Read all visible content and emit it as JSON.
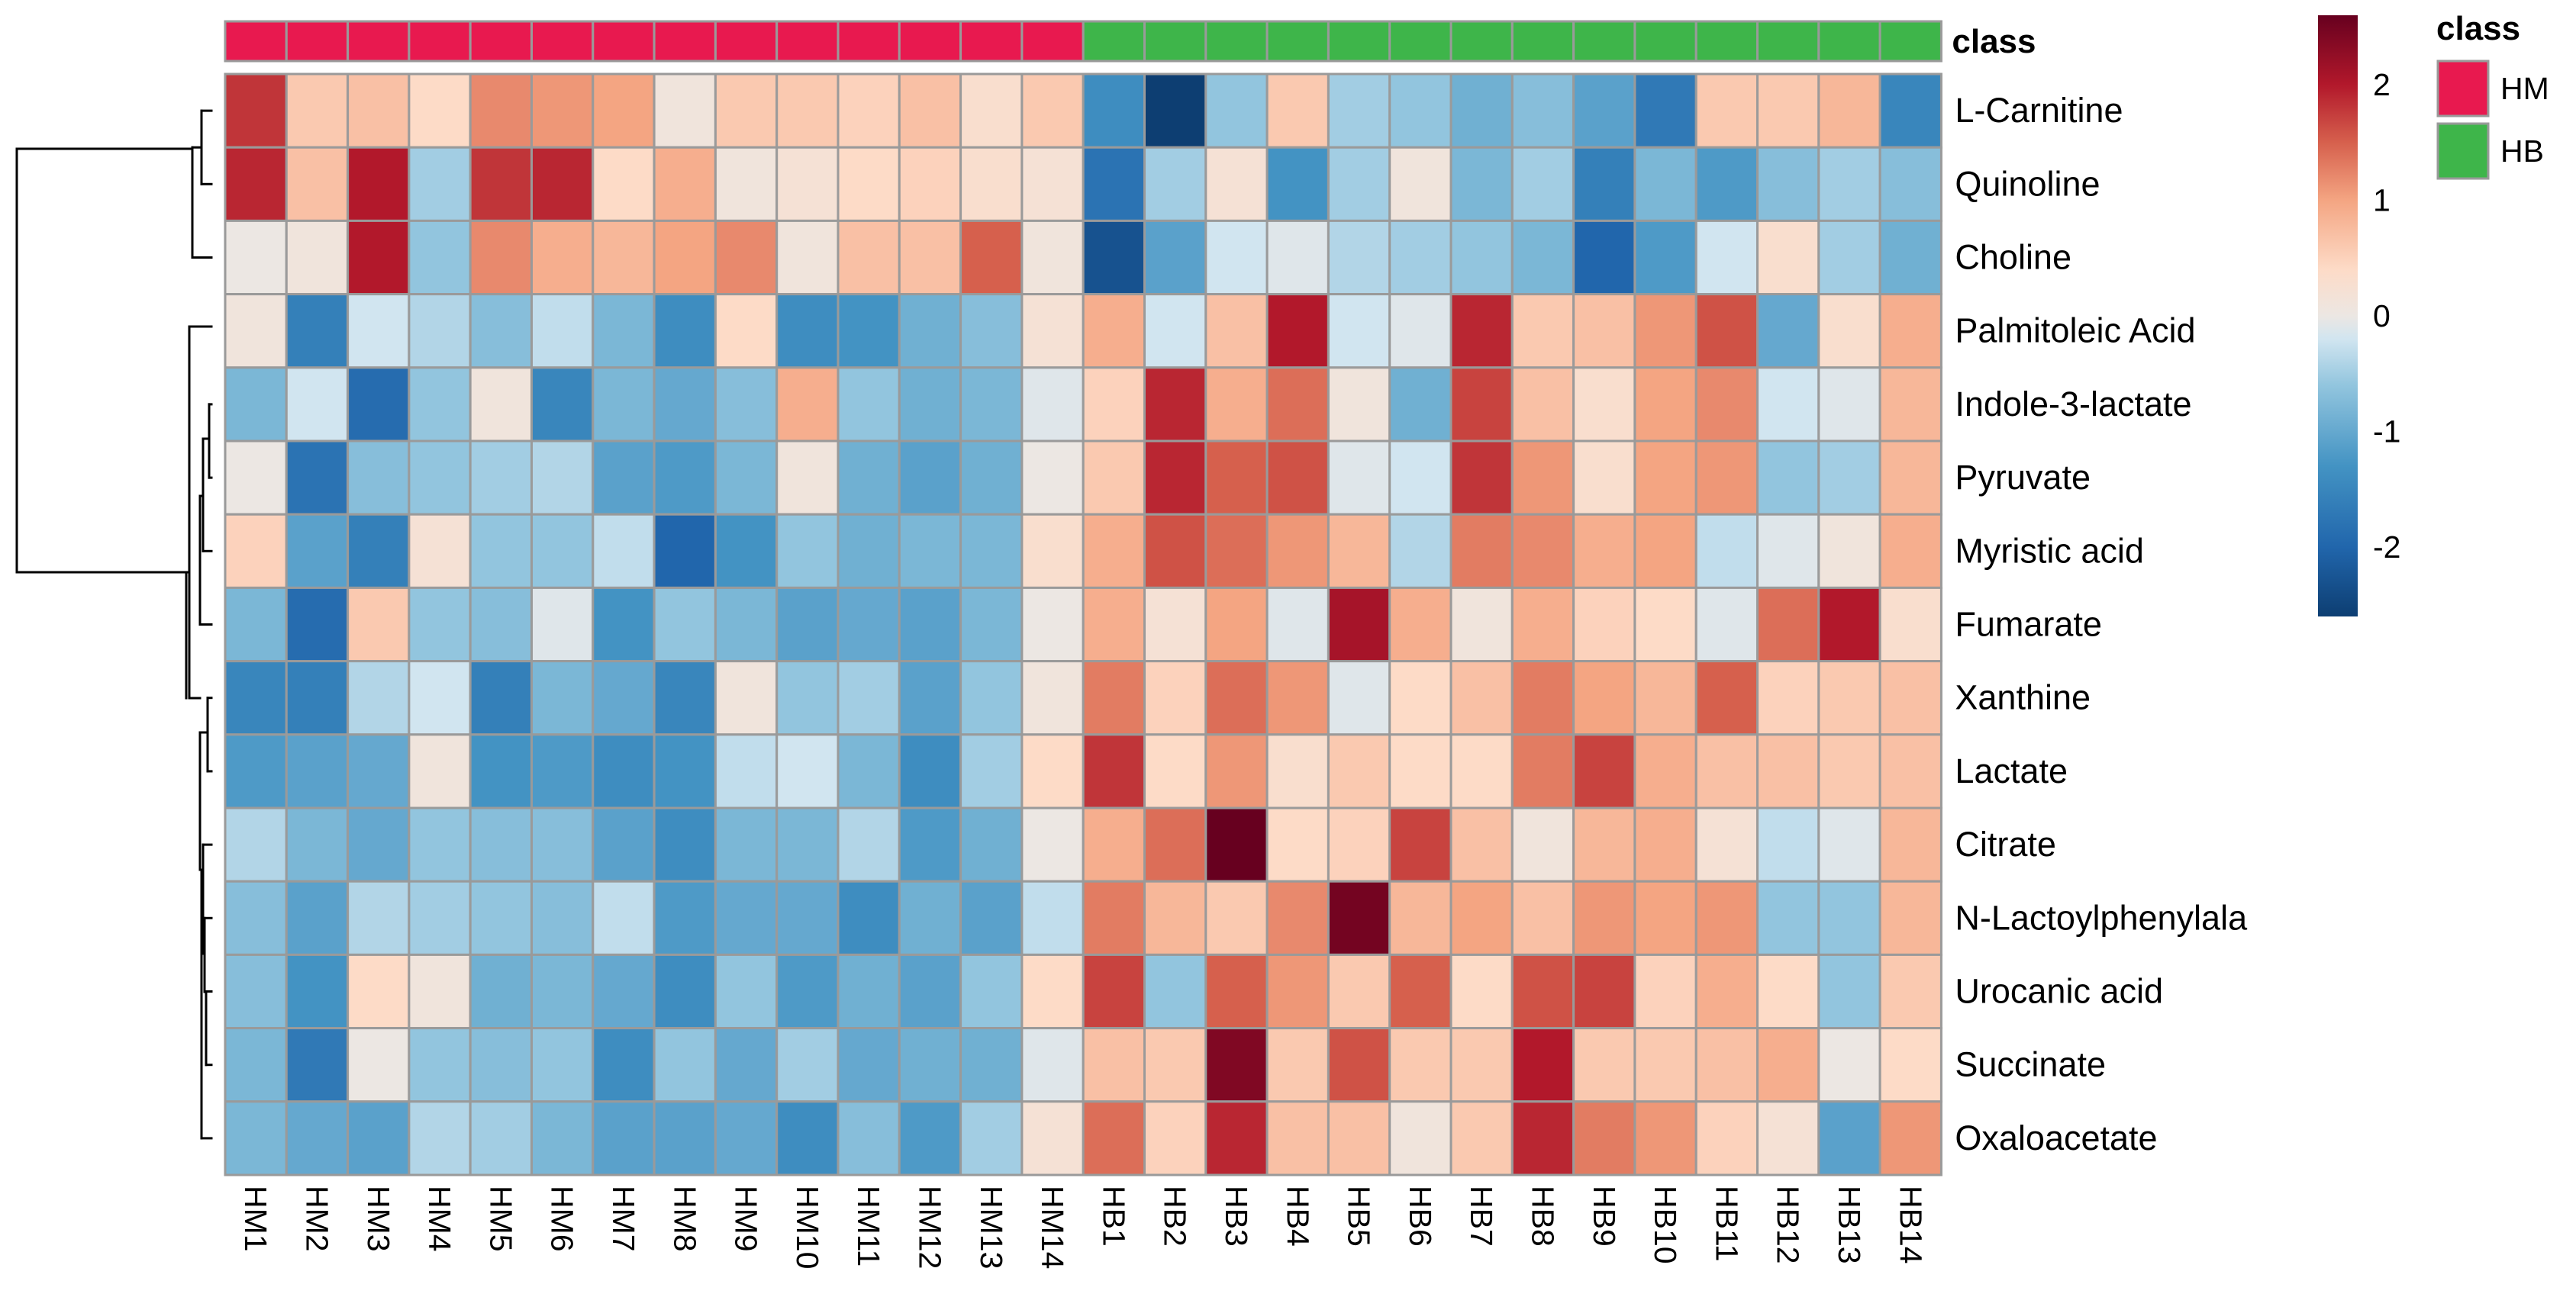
{
  "chart_data": {
    "type": "heatmap",
    "title": "",
    "columns": [
      "HM1",
      "HM2",
      "HM3",
      "HM4",
      "HM5",
      "HM6",
      "HM7",
      "HM8",
      "HM9",
      "HM10",
      "HM11",
      "HM12",
      "HM13",
      "HM14",
      "HB1",
      "HB2",
      "HB3",
      "HB4",
      "HB5",
      "HB6",
      "HB7",
      "HB8",
      "HB9",
      "HB10",
      "HB11",
      "HB12",
      "HB13",
      "HB14"
    ],
    "rows": [
      "L-Carnitine",
      "Quinoline",
      "Choline",
      "Palmitoleic Acid",
      "Indole-3-lactate",
      "Pyruvate",
      "Myristic acid",
      "Fumarate",
      "Xanthine",
      "Lactate",
      "Citrate",
      "N-Lactoylphenylala",
      "Urocanic acid",
      "Succinate",
      "Oxaloacetate"
    ],
    "values": [
      [
        1.8,
        0.6,
        0.7,
        0.4,
        1.2,
        1.1,
        1.0,
        0.1,
        0.6,
        0.6,
        0.5,
        0.7,
        0.3,
        0.6,
        -1.4,
        -2.6,
        -0.6,
        0.6,
        -0.5,
        -0.6,
        -0.9,
        -0.7,
        -1.1,
        -1.7,
        0.6,
        0.6,
        0.8,
        -1.5
      ],
      [
        1.9,
        0.7,
        2.0,
        -0.5,
        1.8,
        1.9,
        0.4,
        0.9,
        0.1,
        0.2,
        0.4,
        0.5,
        0.3,
        0.2,
        -1.8,
        -0.5,
        0.2,
        -1.3,
        -0.5,
        0.1,
        -0.8,
        -0.5,
        -1.6,
        -0.8,
        -1.2,
        -0.7,
        -0.5,
        -0.7
      ],
      [
        0.0,
        0.1,
        2.0,
        -0.6,
        1.2,
        0.9,
        0.8,
        1.0,
        1.2,
        0.1,
        0.7,
        0.7,
        1.5,
        0.1,
        -2.3,
        -1.1,
        -0.2,
        -0.1,
        -0.4,
        -0.5,
        -0.6,
        -0.8,
        -2.0,
        -1.2,
        -0.2,
        0.3,
        -0.5,
        -0.9
      ],
      [
        0.1,
        -1.6,
        -0.2,
        -0.4,
        -0.7,
        -0.3,
        -0.8,
        -1.4,
        0.4,
        -1.4,
        -1.3,
        -0.9,
        -0.7,
        0.2,
        0.9,
        -0.2,
        0.7,
        2.0,
        -0.2,
        -0.1,
        1.9,
        0.6,
        0.7,
        1.1,
        1.6,
        -1.0,
        0.3,
        0.9
      ],
      [
        -0.8,
        -0.2,
        -1.9,
        -0.6,
        0.1,
        -1.5,
        -0.8,
        -1.0,
        -0.7,
        0.9,
        -0.6,
        -0.9,
        -0.8,
        -0.1,
        0.5,
        1.9,
        0.9,
        1.4,
        0.1,
        -0.9,
        1.7,
        0.7,
        0.3,
        1.0,
        1.2,
        -0.2,
        -0.1,
        0.8
      ],
      [
        0.0,
        -1.8,
        -0.7,
        -0.6,
        -0.5,
        -0.4,
        -1.1,
        -1.2,
        -0.8,
        0.1,
        -0.9,
        -1.1,
        -0.9,
        0.0,
        0.6,
        1.9,
        1.5,
        1.6,
        -0.1,
        -0.2,
        1.8,
        1.1,
        0.3,
        1.0,
        1.1,
        -0.6,
        -0.5,
        0.8
      ],
      [
        0.5,
        -1.1,
        -1.6,
        0.2,
        -0.6,
        -0.6,
        -0.3,
        -2.0,
        -1.3,
        -0.6,
        -0.9,
        -0.8,
        -0.8,
        0.3,
        0.9,
        1.6,
        1.4,
        1.1,
        0.8,
        -0.4,
        1.3,
        1.2,
        0.9,
        1.0,
        -0.3,
        -0.1,
        0.1,
        0.9
      ],
      [
        -0.8,
        -1.9,
        0.6,
        -0.6,
        -0.7,
        -0.1,
        -1.3,
        -0.6,
        -0.8,
        -1.1,
        -1.0,
        -1.1,
        -0.8,
        0.0,
        0.9,
        0.2,
        1.0,
        -0.1,
        2.1,
        0.9,
        0.1,
        0.9,
        0.5,
        0.4,
        -0.1,
        1.4,
        2.0,
        0.3
      ],
      [
        -1.5,
        -1.6,
        -0.4,
        -0.2,
        -1.6,
        -0.8,
        -1.0,
        -1.5,
        0.1,
        -0.6,
        -0.5,
        -1.1,
        -0.6,
        0.1,
        1.3,
        0.5,
        1.4,
        1.1,
        -0.1,
        0.4,
        0.7,
        1.3,
        1.0,
        0.8,
        1.5,
        0.5,
        0.6,
        0.7
      ],
      [
        -1.2,
        -1.1,
        -1.0,
        0.1,
        -1.3,
        -1.2,
        -1.4,
        -1.3,
        -0.3,
        -0.2,
        -0.8,
        -1.4,
        -0.5,
        0.4,
        1.8,
        0.4,
        1.1,
        0.3,
        0.6,
        0.4,
        0.4,
        1.3,
        1.7,
        0.9,
        0.7,
        0.7,
        0.6,
        0.7
      ],
      [
        -0.4,
        -0.8,
        -1.0,
        -0.6,
        -0.7,
        -0.7,
        -1.1,
        -1.4,
        -0.8,
        -0.8,
        -0.4,
        -1.2,
        -0.9,
        0.0,
        0.9,
        1.4,
        2.6,
        0.4,
        0.5,
        1.7,
        0.7,
        0.1,
        0.8,
        0.9,
        0.2,
        -0.3,
        -0.1,
        0.8
      ],
      [
        -0.7,
        -1.1,
        -0.4,
        -0.5,
        -0.6,
        -0.7,
        -0.3,
        -1.2,
        -1.0,
        -1.0,
        -1.4,
        -0.9,
        -1.1,
        -0.3,
        1.3,
        0.8,
        0.6,
        1.2,
        2.5,
        0.8,
        1.0,
        0.7,
        1.1,
        1.0,
        1.1,
        -0.6,
        -0.6,
        0.8
      ],
      [
        -0.7,
        -1.3,
        0.4,
        0.1,
        -0.9,
        -0.8,
        -1.0,
        -1.4,
        -0.6,
        -1.2,
        -0.9,
        -1.1,
        -0.6,
        0.4,
        1.7,
        -0.6,
        1.5,
        1.1,
        0.6,
        1.5,
        0.4,
        1.6,
        1.7,
        0.5,
        0.9,
        0.4,
        -0.6,
        0.6
      ],
      [
        -0.8,
        -1.7,
        0.0,
        -0.6,
        -0.7,
        -0.6,
        -1.4,
        -0.6,
        -1.0,
        -0.5,
        -1.0,
        -0.9,
        -0.9,
        -0.1,
        0.7,
        0.6,
        2.4,
        0.6,
        1.6,
        0.6,
        0.6,
        2.0,
        0.6,
        0.6,
        0.7,
        0.9,
        0.0,
        0.4
      ],
      [
        -0.8,
        -1.0,
        -1.1,
        -0.4,
        -0.5,
        -0.8,
        -1.1,
        -1.1,
        -1.0,
        -1.4,
        -0.7,
        -1.2,
        -0.5,
        0.2,
        1.4,
        0.5,
        1.9,
        0.7,
        0.7,
        0.1,
        0.6,
        1.9,
        1.3,
        1.1,
        0.5,
        0.2,
        -1.1,
        1.1
      ]
    ],
    "color_scale": {
      "stops": [
        {
          "value": -2.6,
          "color": "#0D3E72"
        },
        {
          "value": -2.0,
          "color": "#2166AC"
        },
        {
          "value": -1.3,
          "color": "#4393C3"
        },
        {
          "value": -0.6,
          "color": "#92C5DE"
        },
        {
          "value": -0.2,
          "color": "#D1E5F0"
        },
        {
          "value": 0.0,
          "color": "#ECE7E3"
        },
        {
          "value": 0.4,
          "color": "#FDDBC7"
        },
        {
          "value": 1.0,
          "color": "#F4A582"
        },
        {
          "value": 1.5,
          "color": "#D6604D"
        },
        {
          "value": 2.0,
          "color": "#B2182B"
        },
        {
          "value": 2.6,
          "color": "#67001F"
        }
      ],
      "range": [
        -2.6,
        2.6
      ],
      "ticks": [
        2,
        1,
        0,
        -1,
        -2
      ],
      "tick_labels": [
        "2",
        "1",
        "0",
        "-1",
        "-2"
      ],
      "legend_position": "right"
    },
    "annotation": {
      "label": "class",
      "legend_title": "class",
      "groups": [
        "HM",
        "HB"
      ],
      "colors": {
        "HM": "#E8194F",
        "HB": "#3EB54A"
      },
      "column_groups": [
        "HM",
        "HM",
        "HM",
        "HM",
        "HM",
        "HM",
        "HM",
        "HM",
        "HM",
        "HM",
        "HM",
        "HM",
        "HM",
        "HM",
        "HB",
        "HB",
        "HB",
        "HB",
        "HB",
        "HB",
        "HB",
        "HB",
        "HB",
        "HB",
        "HB",
        "HB",
        "HB",
        "HB"
      ]
    },
    "row_dendrogram": "left",
    "cell_border_color": "#9A9A9A",
    "grid": false
  }
}
